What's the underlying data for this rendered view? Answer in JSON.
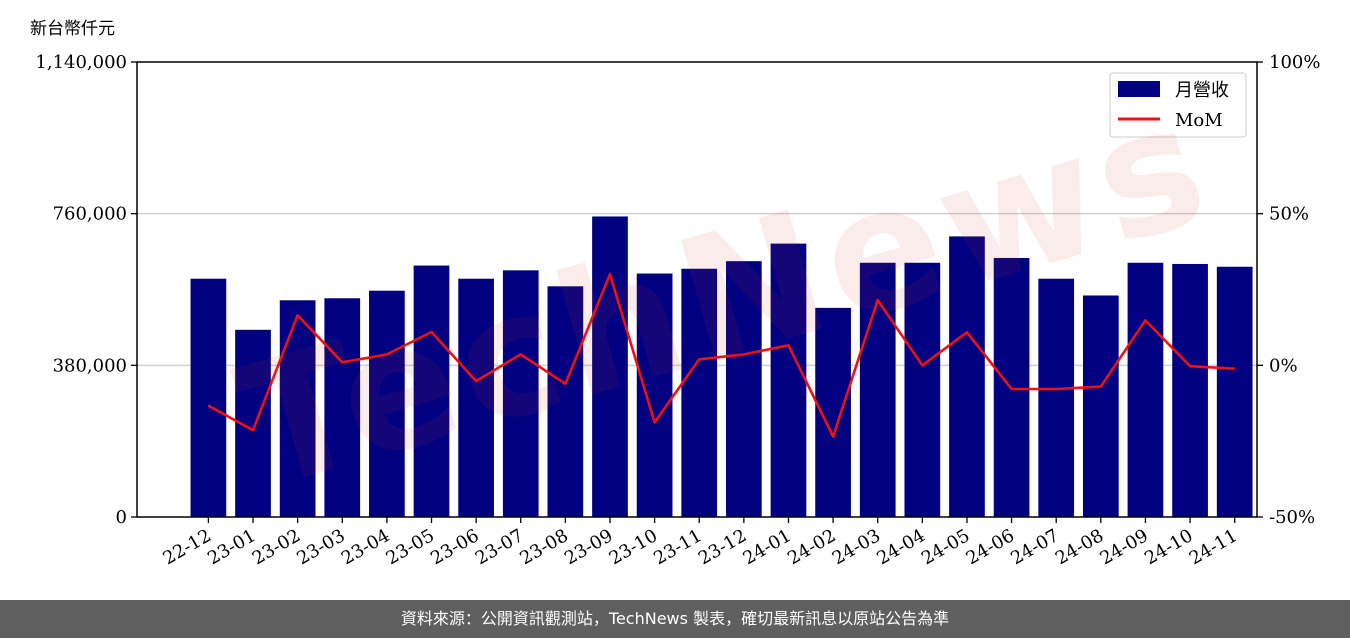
{
  "chart_data": {
    "type": "bar",
    "unit_label": "新台幣仟元",
    "categories": [
      "22-12",
      "23-01",
      "23-02",
      "23-03",
      "23-04",
      "23-05",
      "23-06",
      "23-07",
      "23-08",
      "23-09",
      "23-10",
      "23-11",
      "23-12",
      "24-01",
      "24-02",
      "24-03",
      "24-04",
      "24-05",
      "24-06",
      "24-07",
      "24-08",
      "24-09",
      "24-10",
      "24-11"
    ],
    "series": [
      {
        "name": "月營收",
        "kind": "bar",
        "axis": "left",
        "color": "#000080",
        "values": [
          597000,
          469000,
          543000,
          548000,
          567000,
          630000,
          597000,
          618000,
          578000,
          753000,
          610000,
          622000,
          641000,
          685000,
          524000,
          637000,
          637000,
          703000,
          649000,
          597000,
          555000,
          637000,
          634000,
          627000
        ]
      },
      {
        "name": "MoM",
        "kind": "line",
        "axis": "right",
        "color": "#ee1111",
        "values": [
          -13.3,
          -21.4,
          16.5,
          1.0,
          3.6,
          11.0,
          -5.2,
          3.6,
          -6.1,
          30.0,
          -18.8,
          2.0,
          3.6,
          6.6,
          -23.5,
          21.5,
          0.0,
          10.9,
          -7.8,
          -7.8,
          -7.0,
          14.8,
          -0.3,
          -1.1
        ]
      }
    ],
    "y_left": {
      "min": 0,
      "max": 1140000,
      "ticks": [
        0,
        380000,
        760000,
        1140000
      ],
      "tick_labels": [
        "0",
        "380,000",
        "760,000",
        "1,140,000"
      ]
    },
    "y_right": {
      "min": -50,
      "max": 100,
      "ticks": [
        -50,
        0,
        50,
        100
      ],
      "tick_labels": [
        "-50%",
        "0%",
        "50%",
        "100%"
      ]
    },
    "grid": "horizontal",
    "legend_position": "top-right"
  },
  "watermark_text": "TechNews",
  "footer": {
    "text": "資料來源：公開資訊觀測站，TechNews 製表，確切最新訊息以原站公告為準"
  }
}
